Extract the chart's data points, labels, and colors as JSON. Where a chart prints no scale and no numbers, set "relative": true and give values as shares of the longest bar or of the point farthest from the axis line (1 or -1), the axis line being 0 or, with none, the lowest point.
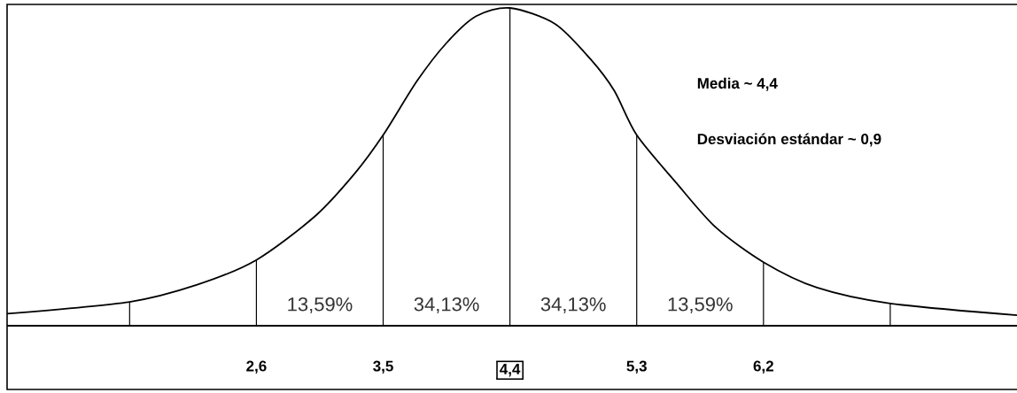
{
  "chart_data": {
    "type": "line",
    "relative": true,
    "x": [
      0.83,
      1.7,
      2.18,
      2.6,
      3.02,
      3.3,
      3.5,
      3.74,
      3.95,
      4.16,
      4.4,
      4.72,
      4.97,
      5.14,
      5.3,
      5.58,
      5.86,
      6.2,
      6.58,
      7.1,
      8.0
    ],
    "series": [
      {
        "color": "#000000",
        "values": [
          0.038,
          0.075,
          0.129,
          0.207,
          0.346,
          0.48,
          0.6,
          0.77,
          0.89,
          0.974,
          1,
          0.95,
          0.84,
          0.74,
          0.6,
          0.45,
          0.31,
          0.2,
          0.12,
          0.07,
          0.033
        ]
      }
    ],
    "xlim": [
      0.83,
      8.0
    ],
    "xticks": [
      {
        "value": 2.6,
        "label": "2,6"
      },
      {
        "value": 3.5,
        "label": "3,5"
      },
      {
        "value": 4.4,
        "label": "4,4"
      },
      {
        "value": 5.3,
        "label": "5,3"
      },
      {
        "value": 6.2,
        "label": "6,2"
      }
    ],
    "ref_lines": [
      {
        "axis": "x",
        "value": 1.7
      },
      {
        "axis": "x",
        "value": 2.6
      },
      {
        "axis": "x",
        "value": 3.5
      },
      {
        "axis": "x",
        "value": 4.4
      },
      {
        "axis": "x",
        "value": 5.3
      },
      {
        "axis": "x",
        "value": 6.2
      },
      {
        "axis": "x",
        "value": 7.1
      }
    ],
    "annotations": [
      "13,59%",
      "34,13%",
      "34,13%",
      "13,59%",
      "Media ~ 4,4",
      "Desviación estándar ~ 0,9"
    ]
  }
}
